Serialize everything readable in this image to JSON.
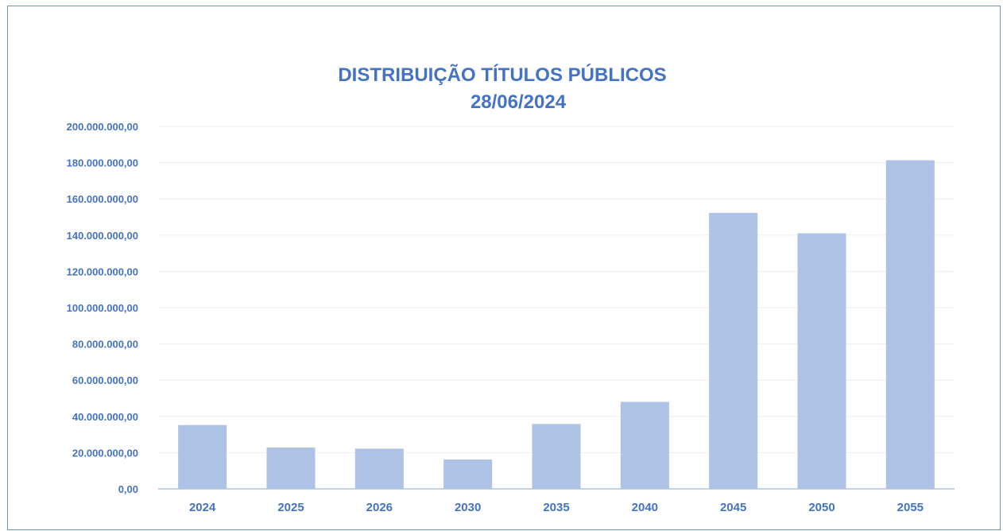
{
  "chart_data": {
    "type": "bar",
    "title": "DISTRIBUIÇÃO TÍTULOS PÚBLICOS",
    "subtitle": "28/06/2024",
    "categories": [
      "2024",
      "2025",
      "2026",
      "2030",
      "2035",
      "2040",
      "2045",
      "2050",
      "2055"
    ],
    "values": [
      35200000,
      22800000,
      22200000,
      16200000,
      35800000,
      48000000,
      152300000,
      141000000,
      181300000
    ],
    "y_ticks": [
      "0,00",
      "20.000.000,00",
      "40.000.000,00",
      "60.000.000,00",
      "80.000.000,00",
      "100.000.000,00",
      "120.000.000,00",
      "140.000.000,00",
      "160.000.000,00",
      "180.000.000,00",
      "200.000.000,00"
    ],
    "ylim": [
      0,
      200000000
    ],
    "xlabel": "",
    "ylabel": "",
    "grid": true,
    "legend": "none",
    "colors": {
      "bar": "#aec2e6",
      "text": "#4472c4",
      "gridline": "#eeeeee",
      "axis": "#a9c4e4"
    }
  }
}
